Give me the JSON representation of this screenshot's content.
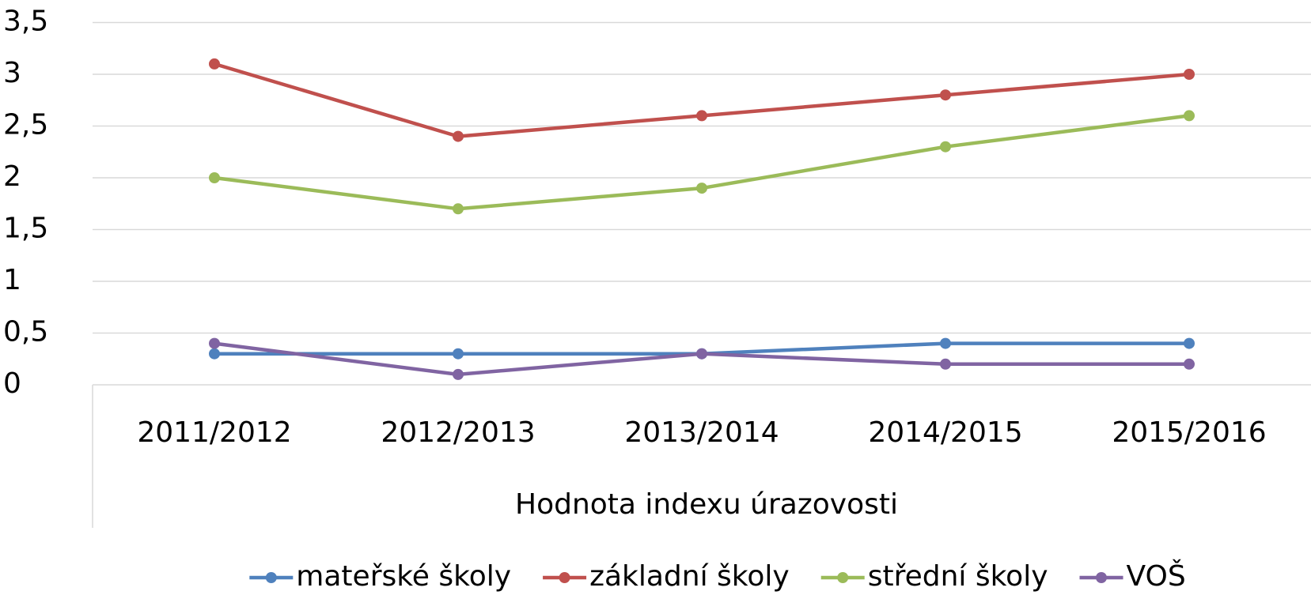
{
  "chart_data": {
    "type": "line",
    "x_label": "Hodnota indexu úrazovosti",
    "categories": [
      "2011/2012",
      "2012/2013",
      "2013/2014",
      "2014/2015",
      "2015/2016"
    ],
    "series": [
      {
        "name": "mateřské školy",
        "color": "#4f81bd",
        "values": [
          0.3,
          0.3,
          0.3,
          0.4,
          0.4
        ]
      },
      {
        "name": "základní školy",
        "color": "#c0504d",
        "values": [
          3.1,
          2.4,
          2.6,
          2.8,
          3.0
        ]
      },
      {
        "name": "střední školy",
        "color": "#9bbb59",
        "values": [
          2.0,
          1.7,
          1.9,
          2.3,
          2.6
        ]
      },
      {
        "name": "VOŠ",
        "color": "#8064a2",
        "values": [
          0.4,
          0.1,
          0.3,
          0.2,
          0.2
        ]
      }
    ],
    "ylim": [
      0,
      3.5
    ],
    "yticks": [
      0,
      {
        "value": 0.5,
        "label": "0,5"
      },
      1,
      {
        "value": 1.5,
        "label": "1,5"
      },
      2,
      {
        "value": 2.5,
        "label": "2,5"
      },
      3,
      {
        "value": 3.5,
        "label": "3,5"
      }
    ],
    "grid": true,
    "legend": "bottom"
  }
}
